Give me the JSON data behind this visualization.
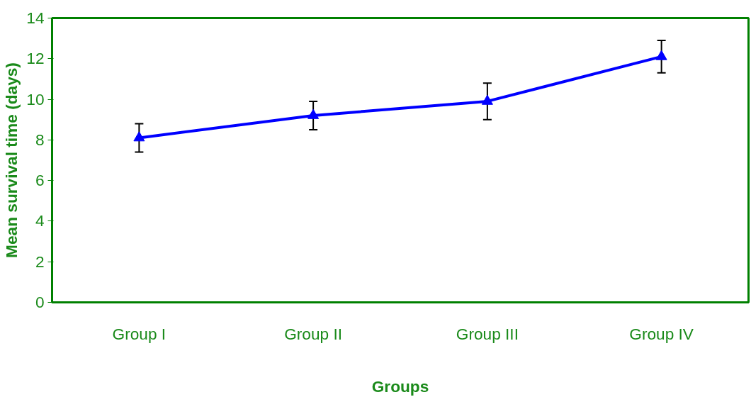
{
  "chart_data": {
    "type": "line",
    "xlabel": "Groups",
    "ylabel": "Mean survival time (days)",
    "categories": [
      "Group I",
      "Group II",
      "Group III",
      "Group IV"
    ],
    "series": [
      {
        "color": "#0000ff",
        "values": [
          8.1,
          9.2,
          9.9,
          12.1
        ],
        "errors": [
          0.7,
          0.7,
          0.9,
          0.8
        ]
      }
    ],
    "ylim": [
      0,
      14
    ],
    "yticks": [
      0,
      2,
      4,
      6,
      8,
      10,
      12,
      14
    ],
    "grid": false,
    "marker": "triangle",
    "line_style": "solid"
  }
}
